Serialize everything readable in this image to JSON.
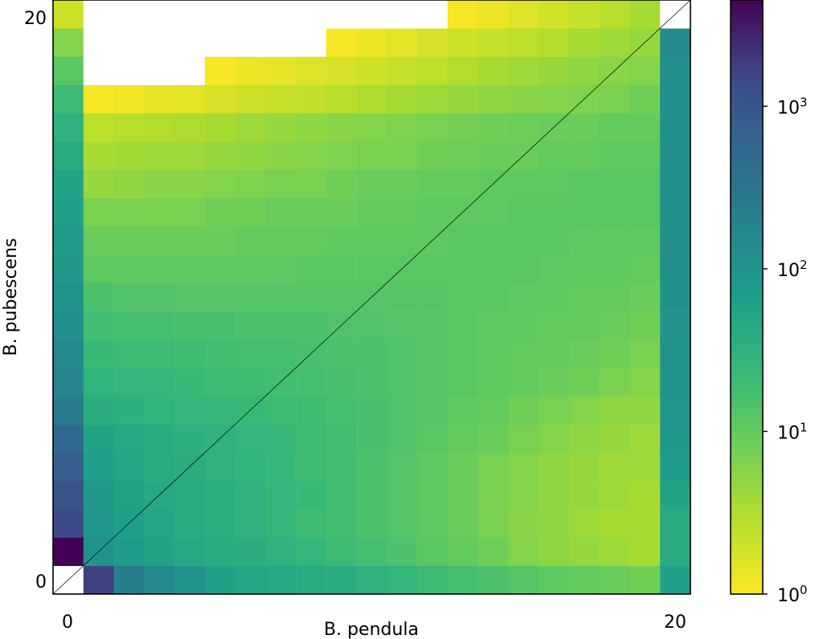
{
  "chart_data": {
    "type": "heatmap",
    "xlabel": "B. pendula",
    "ylabel": "B. pubescens",
    "xlim": [
      0,
      20
    ],
    "ylim": [
      0,
      20
    ],
    "x_ticks": [
      "0",
      "20"
    ],
    "y_ticks": [
      "0",
      "20"
    ],
    "diagonal_line": true,
    "colorscale": "viridis_r",
    "color_scale": "log",
    "colorbar": {
      "range": [
        1,
        4500
      ],
      "ticks": [
        {
          "base": "10",
          "exp": "0",
          "value": 1
        },
        {
          "base": "10",
          "exp": "1",
          "value": 10
        },
        {
          "base": "10",
          "exp": "2",
          "value": 100
        },
        {
          "base": "10",
          "exp": "3",
          "value": 1000
        }
      ]
    },
    "description_rows": "rows indexed by B. pubescens count (0..20, bottom to top); columns by B. pendula count (0..20, left to right); 0 = empty cell",
    "z": [
      [
        0,
        1800,
        220,
        150,
        100,
        60,
        50,
        45,
        40,
        38,
        30,
        25,
        20,
        17,
        15,
        13,
        11,
        10,
        9,
        8,
        60
      ],
      [
        4500,
        100,
        70,
        55,
        45,
        38,
        35,
        30,
        25,
        20,
        17,
        15,
        12,
        10,
        8,
        6,
        5,
        4.5,
        4,
        3.5,
        40
      ],
      [
        1500,
        90,
        65,
        50,
        40,
        34,
        30,
        25,
        20,
        18,
        15,
        13,
        11,
        9,
        7,
        5.5,
        5,
        4,
        3.5,
        3.5,
        40
      ],
      [
        1100,
        80,
        55,
        45,
        40,
        34,
        30,
        25,
        22,
        18,
        15,
        13,
        11,
        9,
        7,
        6,
        5,
        4.5,
        4,
        3.5,
        55
      ],
      [
        800,
        65,
        50,
        40,
        35,
        30,
        28,
        24,
        20,
        18,
        15,
        13,
        11,
        9,
        7,
        6,
        5,
        4.5,
        4,
        4,
        70
      ],
      [
        520,
        55,
        45,
        38,
        32,
        30,
        26,
        23,
        20,
        18,
        16,
        14,
        12,
        10,
        9,
        7,
        6,
        5,
        4.5,
        4,
        80
      ],
      [
        250,
        35,
        32,
        28,
        26,
        24,
        22,
        20,
        19,
        17,
        16,
        14,
        13,
        11,
        10,
        8,
        7,
        6,
        5,
        5,
        90
      ],
      [
        180,
        28,
        25,
        24,
        22,
        20,
        19,
        18,
        17,
        16,
        15,
        14,
        13,
        12,
        11,
        10,
        9,
        8,
        7,
        6,
        95
      ],
      [
        150,
        22,
        20,
        20,
        19,
        18,
        17,
        17,
        16,
        15,
        15,
        14,
        13,
        12,
        11,
        10,
        10,
        9,
        8,
        7,
        100
      ],
      [
        120,
        18,
        17,
        17,
        16,
        16,
        15,
        15,
        15,
        14,
        14,
        13,
        13,
        12,
        11,
        11,
        10,
        10,
        9,
        8,
        105
      ],
      [
        100,
        15,
        14,
        14,
        13,
        13,
        13,
        13,
        13,
        13,
        13,
        13,
        13,
        12,
        12,
        11,
        11,
        10,
        10,
        9,
        110
      ],
      [
        85,
        11,
        11,
        11,
        11,
        11,
        11,
        11,
        12,
        12,
        12,
        12,
        12,
        12,
        12,
        12,
        11,
        11,
        11,
        10,
        110
      ],
      [
        75,
        9,
        9,
        9,
        9,
        9,
        10,
        10,
        10,
        11,
        11,
        11,
        11,
        12,
        12,
        12,
        12,
        11,
        11,
        11,
        115
      ],
      [
        65,
        7,
        7,
        7,
        7,
        8,
        8,
        9,
        9,
        9,
        10,
        10,
        11,
        11,
        11,
        12,
        12,
        12,
        12,
        12,
        115
      ],
      [
        55,
        4.5,
        5,
        5.5,
        5.5,
        6,
        6.5,
        7,
        7,
        8,
        9,
        9,
        10,
        10,
        11,
        11,
        11,
        12,
        12,
        12,
        120
      ],
      [
        40,
        3.5,
        3.7,
        4,
        4,
        4.5,
        5,
        5.5,
        6,
        6.5,
        7,
        7,
        8,
        8.5,
        9,
        9,
        10,
        10,
        11,
        11,
        120
      ],
      [
        30,
        2.6,
        2.8,
        3,
        3.2,
        3.5,
        4,
        4.5,
        5,
        5.5,
        6,
        6.5,
        7,
        7.5,
        8,
        8.5,
        9,
        9,
        10,
        10,
        120
      ],
      [
        20,
        1.1,
        1.2,
        1.4,
        1.5,
        1.8,
        2,
        2.2,
        2.4,
        2.8,
        3.2,
        3.6,
        4,
        4.5,
        5,
        5.5,
        6,
        6.5,
        7,
        8,
        120
      ],
      [
        12,
        0,
        0,
        0,
        0,
        1.1,
        1.3,
        1.4,
        1.6,
        1.8,
        2,
        2.3,
        2.6,
        3,
        3.5,
        4,
        4.5,
        5,
        5.5,
        6,
        120
      ],
      [
        6,
        0,
        0,
        0,
        0,
        0,
        0,
        0,
        0,
        1.1,
        1.3,
        1.5,
        1.8,
        2,
        2.3,
        2.6,
        3,
        3.5,
        4,
        4.5,
        140
      ],
      [
        2,
        0,
        0,
        0,
        0,
        0,
        0,
        0,
        0,
        0,
        0,
        0,
        0,
        1.1,
        1.3,
        1.6,
        1.9,
        2.3,
        2.8,
        3.6,
        0
      ]
    ]
  }
}
